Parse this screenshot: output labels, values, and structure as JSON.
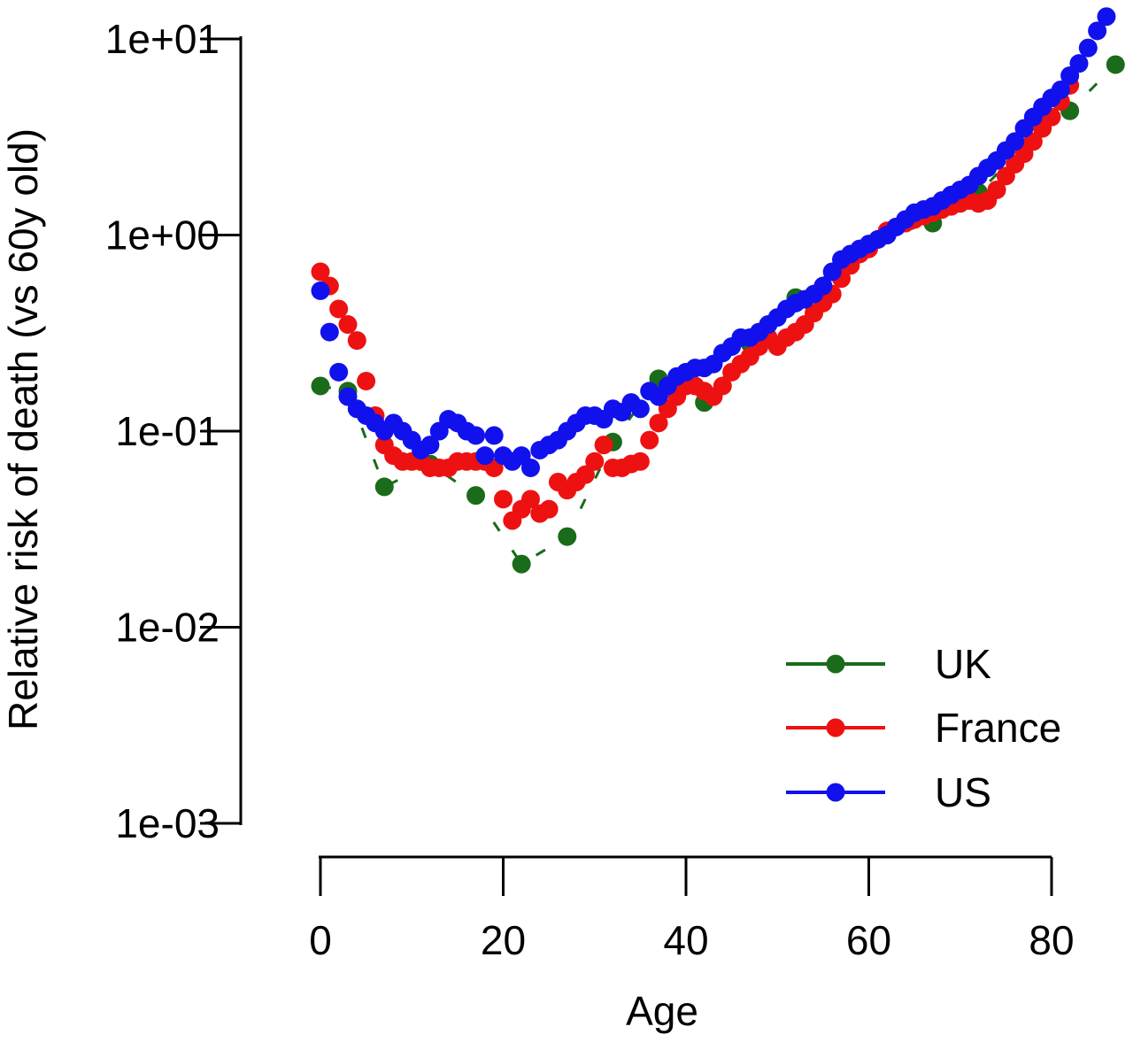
{
  "chart_data": {
    "type": "scatter",
    "title": "",
    "xlabel": "Age",
    "ylabel": "Relative risk of death (vs 60y old)",
    "xlim": [
      0,
      80
    ],
    "ylim": [
      0.001,
      10
    ],
    "y_scale": "log",
    "grid": false,
    "legend_position": "bottom-right",
    "x_ticks": [
      0,
      20,
      40,
      60,
      80
    ],
    "x_tick_labels": [
      "0",
      "20",
      "40",
      "60",
      "80"
    ],
    "y_ticks": [
      10,
      1,
      0.1,
      0.01,
      0.001
    ],
    "y_tick_labels": [
      "1e+01",
      "1e+00",
      "1e-01",
      "1e-02",
      "1e-03"
    ],
    "series": [
      {
        "name": "UK",
        "color": "#1a6b1a",
        "line_style": "dashed",
        "x": [
          0,
          3,
          7,
          12,
          17,
          22,
          27,
          32,
          37,
          42,
          47,
          52,
          57,
          62,
          67,
          72,
          77,
          82,
          87
        ],
        "y": [
          0.17,
          0.16,
          0.052,
          0.068,
          0.047,
          0.021,
          0.029,
          0.088,
          0.185,
          0.14,
          0.28,
          0.48,
          0.7,
          1.0,
          1.15,
          1.65,
          2.8,
          4.3,
          7.4
        ]
      },
      {
        "name": "France",
        "color": "#ee1111",
        "x": [
          0,
          1,
          2,
          3,
          4,
          5,
          6,
          7,
          8,
          9,
          10,
          11,
          12,
          13,
          14,
          15,
          16,
          17,
          18,
          19,
          20,
          21,
          22,
          23,
          24,
          25,
          26,
          27,
          28,
          29,
          30,
          31,
          32,
          33,
          34,
          35,
          36,
          37,
          38,
          39,
          40,
          41,
          42,
          43,
          44,
          45,
          46,
          47,
          48,
          49,
          50,
          51,
          52,
          53,
          54,
          55,
          56,
          57,
          58,
          59,
          60,
          61,
          62,
          63,
          64,
          65,
          66,
          67,
          68,
          69,
          70,
          71,
          72,
          73,
          74,
          75,
          76,
          77,
          78,
          79,
          80,
          81,
          82
        ],
        "y": [
          0.65,
          0.55,
          0.42,
          0.35,
          0.29,
          0.18,
          0.12,
          0.085,
          0.075,
          0.07,
          0.07,
          0.07,
          0.065,
          0.065,
          0.065,
          0.07,
          0.07,
          0.07,
          0.07,
          0.065,
          0.045,
          0.035,
          0.04,
          0.045,
          0.038,
          0.04,
          0.055,
          0.05,
          0.055,
          0.06,
          0.07,
          0.085,
          0.065,
          0.065,
          0.068,
          0.07,
          0.09,
          0.11,
          0.13,
          0.15,
          0.17,
          0.17,
          0.16,
          0.15,
          0.17,
          0.2,
          0.22,
          0.24,
          0.27,
          0.3,
          0.27,
          0.3,
          0.32,
          0.35,
          0.4,
          0.45,
          0.5,
          0.6,
          0.7,
          0.8,
          0.85,
          0.95,
          1.05,
          1.1,
          1.15,
          1.2,
          1.25,
          1.3,
          1.35,
          1.4,
          1.45,
          1.5,
          1.45,
          1.5,
          1.7,
          2.0,
          2.3,
          2.6,
          3.0,
          3.5,
          4.0,
          4.8,
          5.8
        ]
      },
      {
        "name": "US",
        "color": "#1111ee",
        "x": [
          0,
          1,
          2,
          3,
          4,
          5,
          6,
          7,
          8,
          9,
          10,
          11,
          12,
          13,
          14,
          15,
          16,
          17,
          18,
          19,
          20,
          21,
          22,
          23,
          24,
          25,
          26,
          27,
          28,
          29,
          30,
          31,
          32,
          33,
          34,
          35,
          36,
          37,
          38,
          39,
          40,
          41,
          42,
          43,
          44,
          45,
          46,
          47,
          48,
          49,
          50,
          51,
          52,
          53,
          54,
          55,
          56,
          57,
          58,
          59,
          60,
          61,
          62,
          63,
          64,
          65,
          66,
          67,
          68,
          69,
          70,
          71,
          72,
          73,
          74,
          75,
          76,
          77,
          78,
          79,
          80,
          81,
          82,
          83,
          84,
          85,
          86
        ],
        "y": [
          0.52,
          0.32,
          0.2,
          0.15,
          0.13,
          0.12,
          0.11,
          0.1,
          0.11,
          0.1,
          0.09,
          0.08,
          0.085,
          0.1,
          0.115,
          0.11,
          0.1,
          0.095,
          0.075,
          0.095,
          0.075,
          0.07,
          0.075,
          0.065,
          0.08,
          0.085,
          0.09,
          0.1,
          0.11,
          0.12,
          0.12,
          0.115,
          0.13,
          0.125,
          0.14,
          0.13,
          0.16,
          0.15,
          0.17,
          0.19,
          0.2,
          0.21,
          0.21,
          0.22,
          0.25,
          0.27,
          0.3,
          0.3,
          0.32,
          0.35,
          0.38,
          0.42,
          0.45,
          0.47,
          0.5,
          0.55,
          0.65,
          0.75,
          0.8,
          0.85,
          0.9,
          0.95,
          1.0,
          1.1,
          1.2,
          1.3,
          1.35,
          1.4,
          1.5,
          1.6,
          1.7,
          1.8,
          2.0,
          2.2,
          2.4,
          2.7,
          3.0,
          3.5,
          4.0,
          4.5,
          5.0,
          5.5,
          6.5,
          7.5,
          9.0,
          11.0,
          13.0
        ]
      }
    ]
  }
}
